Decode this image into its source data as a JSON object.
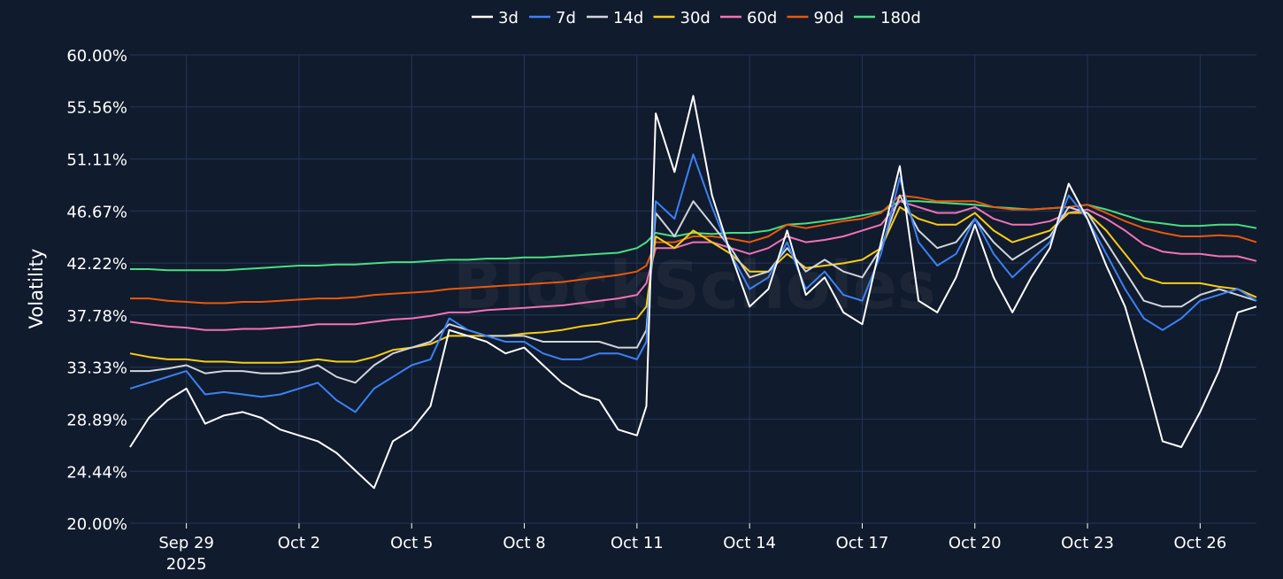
{
  "chart_data": {
    "type": "line",
    "title": "",
    "xlabel": "",
    "ylabel": "Volatility",
    "watermark": "BlockScholes",
    "legend_position": "top-center",
    "grid": true,
    "ylim": [
      20.0,
      60.0
    ],
    "y_ticks": [
      {
        "value": 20.0,
        "label": "20.00%"
      },
      {
        "value": 24.44,
        "label": "24.44%"
      },
      {
        "value": 28.89,
        "label": "28.89%"
      },
      {
        "value": 33.33,
        "label": "33.33%"
      },
      {
        "value": 37.78,
        "label": "37.78%"
      },
      {
        "value": 42.22,
        "label": "42.22%"
      },
      {
        "value": 46.67,
        "label": "46.67%"
      },
      {
        "value": 51.11,
        "label": "51.11%"
      },
      {
        "value": 55.56,
        "label": "55.56%"
      },
      {
        "value": 60.0,
        "label": "60.00%"
      }
    ],
    "xlim": [
      "2025-09-27T12:00",
      "2025-10-27T12:00"
    ],
    "x_ticks": [
      {
        "date": "2025-09-29",
        "label": "Sep 29",
        "sublabel": "2025"
      },
      {
        "date": "2025-10-02",
        "label": "Oct 2",
        "sublabel": ""
      },
      {
        "date": "2025-10-05",
        "label": "Oct 5",
        "sublabel": ""
      },
      {
        "date": "2025-10-08",
        "label": "Oct 8",
        "sublabel": ""
      },
      {
        "date": "2025-10-11",
        "label": "Oct 11",
        "sublabel": ""
      },
      {
        "date": "2025-10-14",
        "label": "Oct 14",
        "sublabel": ""
      },
      {
        "date": "2025-10-17",
        "label": "Oct 17",
        "sublabel": ""
      },
      {
        "date": "2025-10-20",
        "label": "Oct 20",
        "sublabel": ""
      },
      {
        "date": "2025-10-23",
        "label": "Oct 23",
        "sublabel": ""
      },
      {
        "date": "2025-10-26",
        "label": "Oct 26",
        "sublabel": ""
      }
    ],
    "x": [
      "2025-09-27T12:00",
      "2025-09-28T00:00",
      "2025-09-28T12:00",
      "2025-09-29T00:00",
      "2025-09-29T12:00",
      "2025-09-30T00:00",
      "2025-09-30T12:00",
      "2025-10-01T00:00",
      "2025-10-01T12:00",
      "2025-10-02T00:00",
      "2025-10-02T12:00",
      "2025-10-03T00:00",
      "2025-10-03T12:00",
      "2025-10-04T00:00",
      "2025-10-04T12:00",
      "2025-10-05T00:00",
      "2025-10-05T12:00",
      "2025-10-06T00:00",
      "2025-10-06T12:00",
      "2025-10-07T00:00",
      "2025-10-07T12:00",
      "2025-10-08T00:00",
      "2025-10-08T12:00",
      "2025-10-09T00:00",
      "2025-10-09T12:00",
      "2025-10-10T00:00",
      "2025-10-10T12:00",
      "2025-10-11T00:00",
      "2025-10-11T06:00",
      "2025-10-11T12:00",
      "2025-10-12T00:00",
      "2025-10-12T12:00",
      "2025-10-13T00:00",
      "2025-10-13T12:00",
      "2025-10-14T00:00",
      "2025-10-14T12:00",
      "2025-10-15T00:00",
      "2025-10-15T12:00",
      "2025-10-16T00:00",
      "2025-10-16T12:00",
      "2025-10-17T00:00",
      "2025-10-17T12:00",
      "2025-10-18T00:00",
      "2025-10-18T12:00",
      "2025-10-19T00:00",
      "2025-10-19T12:00",
      "2025-10-20T00:00",
      "2025-10-20T12:00",
      "2025-10-21T00:00",
      "2025-10-21T12:00",
      "2025-10-22T00:00",
      "2025-10-22T12:00",
      "2025-10-23T00:00",
      "2025-10-23T12:00",
      "2025-10-24T00:00",
      "2025-10-24T12:00",
      "2025-10-25T00:00",
      "2025-10-25T12:00",
      "2025-10-26T00:00",
      "2025-10-26T12:00",
      "2025-10-27T00:00",
      "2025-10-27T12:00"
    ],
    "series": [
      {
        "name": "3d",
        "color": "#ffffff",
        "values": [
          26.5,
          29.0,
          30.5,
          31.5,
          28.5,
          29.2,
          29.5,
          29.0,
          28.0,
          27.5,
          27.0,
          26.0,
          24.5,
          23.0,
          27.0,
          28.0,
          30.0,
          36.5,
          36.0,
          35.5,
          34.5,
          35.0,
          33.5,
          32.0,
          31.0,
          30.5,
          28.0,
          27.5,
          30.0,
          55.0,
          50.0,
          56.5,
          48.0,
          43.0,
          38.5,
          40.0,
          45.0,
          39.5,
          41.0,
          38.0,
          37.0,
          44.0,
          50.5,
          39.0,
          38.0,
          41.0,
          45.5,
          41.0,
          38.0,
          41.0,
          43.5,
          49.0,
          46.0,
          42.0,
          38.5,
          33.0,
          27.0,
          26.5,
          29.5,
          33.0,
          38.0,
          38.5
        ]
      },
      {
        "name": "7d",
        "color": "#3b82f6",
        "values": [
          31.5,
          32.0,
          32.5,
          33.0,
          31.0,
          31.2,
          31.0,
          30.8,
          31.0,
          31.5,
          32.0,
          30.5,
          29.5,
          31.5,
          32.5,
          33.5,
          34.0,
          37.5,
          36.5,
          36.0,
          35.5,
          35.5,
          34.5,
          34.0,
          34.0,
          34.5,
          34.5,
          34.0,
          35.5,
          47.5,
          46.0,
          51.5,
          47.0,
          43.0,
          40.0,
          41.0,
          44.0,
          40.0,
          41.5,
          39.5,
          39.0,
          43.0,
          49.5,
          44.0,
          42.0,
          43.0,
          46.0,
          43.0,
          41.0,
          42.5,
          44.0,
          48.0,
          46.0,
          43.0,
          40.0,
          37.5,
          36.5,
          37.5,
          39.0,
          39.5,
          40.0,
          39.0
        ]
      },
      {
        "name": "14d",
        "color": "#d1d5db",
        "values": [
          33.0,
          33.0,
          33.2,
          33.5,
          32.8,
          33.0,
          33.0,
          32.8,
          32.8,
          33.0,
          33.5,
          32.5,
          32.0,
          33.5,
          34.5,
          35.0,
          35.5,
          37.0,
          36.5,
          36.0,
          36.0,
          36.0,
          35.5,
          35.5,
          35.5,
          35.5,
          35.0,
          35.0,
          36.5,
          46.5,
          44.5,
          47.5,
          45.5,
          43.5,
          41.0,
          41.5,
          43.5,
          41.5,
          42.5,
          41.5,
          41.0,
          43.5,
          48.0,
          45.0,
          43.5,
          44.0,
          46.0,
          44.0,
          42.5,
          43.5,
          44.5,
          47.0,
          46.5,
          44.0,
          41.5,
          39.0,
          38.5,
          38.5,
          39.5,
          40.0,
          39.5,
          39.0
        ]
      },
      {
        "name": "30d",
        "color": "#facc15",
        "values": [
          34.5,
          34.2,
          34.0,
          34.0,
          33.8,
          33.8,
          33.7,
          33.7,
          33.7,
          33.8,
          34.0,
          33.8,
          33.8,
          34.2,
          34.8,
          35.0,
          35.3,
          36.0,
          36.0,
          36.0,
          36.0,
          36.2,
          36.3,
          36.5,
          36.8,
          37.0,
          37.3,
          37.5,
          38.5,
          44.5,
          43.5,
          45.0,
          44.0,
          43.0,
          41.5,
          41.5,
          43.0,
          41.8,
          42.0,
          42.2,
          42.5,
          43.5,
          47.0,
          46.0,
          45.5,
          45.5,
          46.5,
          45.0,
          44.0,
          44.5,
          45.0,
          46.5,
          46.5,
          45.0,
          43.0,
          41.0,
          40.5,
          40.5,
          40.5,
          40.2,
          40.0,
          39.3
        ]
      },
      {
        "name": "60d",
        "color": "#f472b6",
        "values": [
          37.2,
          37.0,
          36.8,
          36.7,
          36.5,
          36.5,
          36.6,
          36.6,
          36.7,
          36.8,
          37.0,
          37.0,
          37.0,
          37.2,
          37.4,
          37.5,
          37.7,
          38.0,
          38.0,
          38.2,
          38.3,
          38.4,
          38.5,
          38.6,
          38.8,
          39.0,
          39.2,
          39.5,
          40.5,
          43.5,
          43.5,
          44.0,
          44.0,
          43.5,
          43.0,
          43.5,
          44.5,
          44.0,
          44.2,
          44.5,
          45.0,
          45.5,
          47.5,
          47.0,
          46.5,
          46.5,
          47.0,
          46.0,
          45.5,
          45.5,
          45.8,
          46.5,
          46.8,
          46.0,
          45.0,
          43.8,
          43.2,
          43.0,
          43.0,
          42.8,
          42.8,
          42.4
        ]
      },
      {
        "name": "90d",
        "color": "#ea580c",
        "values": [
          39.2,
          39.2,
          39.0,
          38.9,
          38.8,
          38.8,
          38.9,
          38.9,
          39.0,
          39.1,
          39.2,
          39.2,
          39.3,
          39.5,
          39.6,
          39.7,
          39.8,
          40.0,
          40.1,
          40.2,
          40.3,
          40.4,
          40.5,
          40.6,
          40.8,
          41.0,
          41.2,
          41.5,
          42.0,
          44.0,
          44.0,
          44.5,
          44.5,
          44.3,
          44.0,
          44.5,
          45.5,
          45.2,
          45.5,
          45.8,
          46.0,
          46.5,
          48.0,
          47.8,
          47.5,
          47.5,
          47.5,
          47.0,
          46.8,
          46.8,
          46.9,
          47.0,
          47.2,
          46.5,
          45.8,
          45.2,
          44.8,
          44.5,
          44.5,
          44.6,
          44.5,
          44.0
        ]
      },
      {
        "name": "180d",
        "color": "#4ade80",
        "values": [
          41.7,
          41.7,
          41.6,
          41.6,
          41.6,
          41.6,
          41.7,
          41.8,
          41.9,
          42.0,
          42.0,
          42.1,
          42.1,
          42.2,
          42.3,
          42.3,
          42.4,
          42.5,
          42.5,
          42.6,
          42.6,
          42.7,
          42.7,
          42.8,
          42.9,
          43.0,
          43.1,
          43.5,
          44.0,
          44.8,
          44.5,
          44.8,
          44.7,
          44.8,
          44.8,
          45.0,
          45.5,
          45.6,
          45.8,
          46.0,
          46.3,
          46.6,
          47.5,
          47.5,
          47.4,
          47.3,
          47.2,
          47.0,
          46.9,
          46.8,
          46.9,
          47.0,
          47.2,
          46.8,
          46.3,
          45.8,
          45.6,
          45.4,
          45.4,
          45.5,
          45.5,
          45.2
        ]
      }
    ]
  }
}
